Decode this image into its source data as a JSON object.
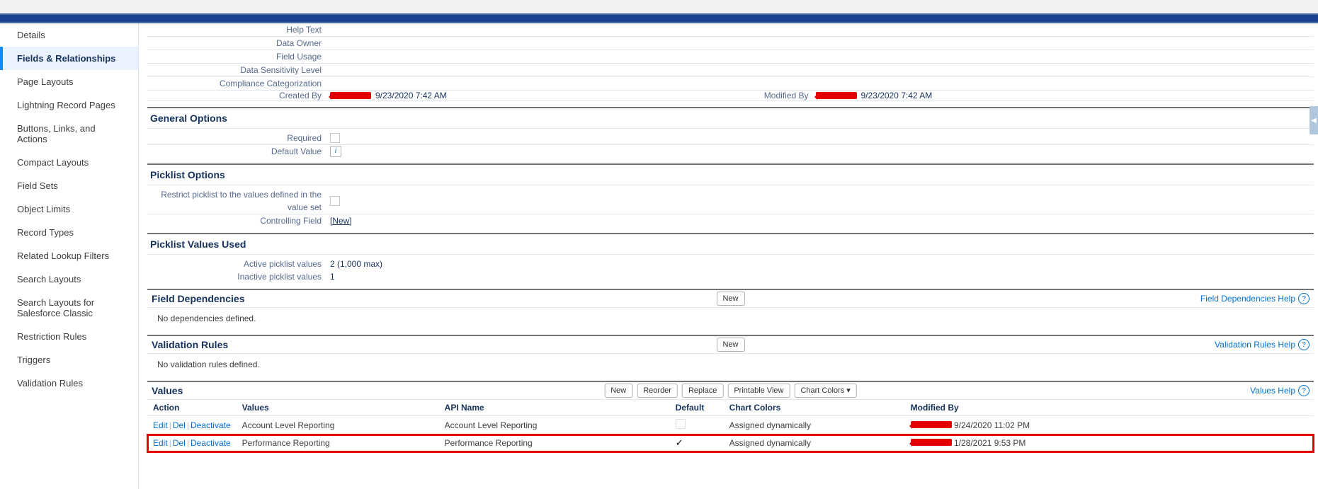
{
  "sidebar": {
    "items": [
      {
        "label": "Details",
        "key": "details"
      },
      {
        "label": "Fields & Relationships",
        "key": "fields-rel",
        "active": true
      },
      {
        "label": "Page Layouts",
        "key": "page-layouts"
      },
      {
        "label": "Lightning Record Pages",
        "key": "lrp"
      },
      {
        "label": "Buttons, Links, and Actions",
        "key": "bla"
      },
      {
        "label": "Compact Layouts",
        "key": "compact"
      },
      {
        "label": "Field Sets",
        "key": "field-sets"
      },
      {
        "label": "Object Limits",
        "key": "obj-limits"
      },
      {
        "label": "Record Types",
        "key": "rec-types"
      },
      {
        "label": "Related Lookup Filters",
        "key": "rlf"
      },
      {
        "label": "Search Layouts",
        "key": "search-layouts"
      },
      {
        "label": "Search Layouts for Salesforce Classic",
        "key": "slsc"
      },
      {
        "label": "Restriction Rules",
        "key": "rr"
      },
      {
        "label": "Triggers",
        "key": "triggers"
      },
      {
        "label": "Validation Rules",
        "key": "vr"
      }
    ]
  },
  "detail": {
    "helpText": {
      "label": "Help Text",
      "value": ""
    },
    "dataOwner": {
      "label": "Data Owner",
      "value": ""
    },
    "fieldUsage": {
      "label": "Field Usage",
      "value": ""
    },
    "dataSensitivity": {
      "label": "Data Sensitivity Level",
      "value": ""
    },
    "compliance": {
      "label": "Compliance Categorization",
      "value": ""
    },
    "createdBy": {
      "label": "Created By",
      "date": "9/23/2020 7:42 AM"
    },
    "modifiedBy": {
      "label": "Modified By",
      "date": "9/23/2020 7:42 AM"
    }
  },
  "generalOptions": {
    "title": "General Options",
    "required": {
      "label": "Required",
      "checked": false
    },
    "defaultValue": {
      "label": "Default Value"
    }
  },
  "picklistOptions": {
    "title": "Picklist Options",
    "restrict": {
      "label": "Restrict picklist to the values defined in the value set",
      "checked": false
    },
    "controllingField": {
      "label": "Controlling Field",
      "link": "[New]"
    }
  },
  "picklistValuesUsed": {
    "title": "Picklist Values Used",
    "active": {
      "label": "Active picklist values",
      "value": "2 (1,000 max)"
    },
    "inactive": {
      "label": "Inactive picklist values",
      "value": "1"
    }
  },
  "fieldDeps": {
    "title": "Field Dependencies",
    "new": "New",
    "help": "Field Dependencies Help",
    "empty": "No dependencies defined."
  },
  "validationRules": {
    "title": "Validation Rules",
    "new": "New",
    "help": "Validation Rules Help",
    "empty": "No validation rules defined."
  },
  "valuesSection": {
    "title": "Values",
    "buttons": {
      "new": "New",
      "reorder": "Reorder",
      "replace": "Replace",
      "printable": "Printable View",
      "chartColors": "Chart Colors"
    },
    "help": "Values Help",
    "actions": {
      "edit": "Edit",
      "del": "Del",
      "deactivate": "Deactivate"
    },
    "cols": {
      "action": "Action",
      "values": "Values",
      "api": "API Name",
      "default": "Default",
      "chart": "Chart Colors",
      "mod": "Modified By"
    },
    "rows": [
      {
        "value": "Account Level Reporting",
        "api": "Account Level Reporting",
        "default": false,
        "chart": "Assigned dynamically",
        "modDate": "9/24/2020 11:02 PM",
        "hl": false
      },
      {
        "value": "Performance Reporting",
        "api": "Performance Reporting",
        "default": true,
        "chart": "Assigned dynamically",
        "modDate": "1/28/2021 9:53 PM",
        "hl": true
      }
    ]
  },
  "colors": {
    "accent": "#0070d2",
    "highlight": "#e40000"
  }
}
